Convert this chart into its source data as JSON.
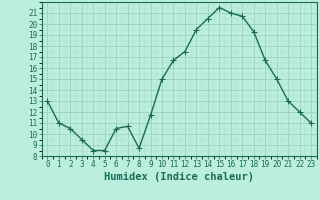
{
  "x": [
    0,
    1,
    2,
    3,
    4,
    5,
    6,
    7,
    8,
    9,
    10,
    11,
    12,
    13,
    14,
    15,
    16,
    17,
    18,
    19,
    20,
    21,
    22,
    23
  ],
  "y": [
    13,
    11,
    10.5,
    9.5,
    8.5,
    8.5,
    10.5,
    10.7,
    8.7,
    11.7,
    15,
    16.7,
    17.5,
    19.5,
    20.5,
    21.5,
    21,
    20.7,
    19.3,
    16.7,
    15,
    13,
    12,
    11
  ],
  "line_color": "#1a6b5a",
  "marker": "+",
  "marker_size": 4,
  "bg_color": "#bbeedd",
  "xlabel": "Humidex (Indice chaleur)",
  "xlim": [
    -0.5,
    23.5
  ],
  "ylim": [
    8,
    22
  ],
  "yticks": [
    8,
    9,
    10,
    11,
    12,
    13,
    14,
    15,
    16,
    17,
    18,
    19,
    20,
    21
  ],
  "xticks": [
    0,
    1,
    2,
    3,
    4,
    5,
    6,
    7,
    8,
    9,
    10,
    11,
    12,
    13,
    14,
    15,
    16,
    17,
    18,
    19,
    20,
    21,
    22,
    23
  ],
  "tick_color": "#1a6b5a",
  "tick_fontsize": 5.5,
  "xlabel_fontsize": 7.5,
  "line_width": 1.0,
  "major_grid_color": "#99ccbb",
  "minor_grid_color": "#aaddcc",
  "spine_color": "#1a6b5a"
}
